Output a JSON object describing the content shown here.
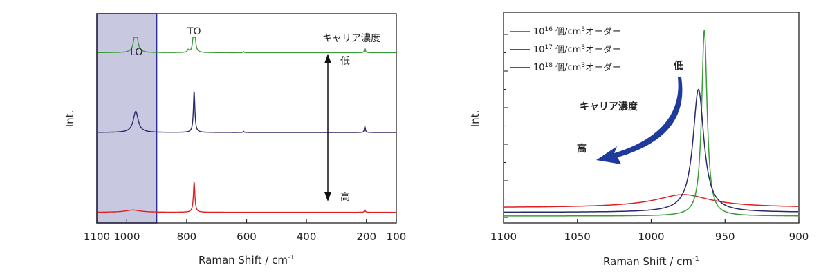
{
  "chart_data": [
    {
      "type": "line",
      "xlabel": "Raman Shift / cm",
      "xlabel_sup": "-1",
      "ylabel": "Int.",
      "xlim": [
        1100,
        100
      ],
      "x_ticks": [
        1100,
        1000,
        800,
        600,
        400,
        200,
        100
      ],
      "highlight_range": [
        1100,
        900
      ],
      "highlight_color": "#c8c8e0",
      "peak_labels": [
        {
          "text": "LO",
          "x": 970
        },
        {
          "text": "TO",
          "x": 775
        }
      ],
      "arrow_title": "キャリア濃度",
      "arrow_top_label": "低",
      "arrow_bottom_label": "高",
      "series": [
        {
          "color": "#3a9a3a",
          "baseline": 0.88,
          "peaks": [
            {
              "x": 970,
              "h": 0.8,
              "w": 6
            },
            {
              "x": 775,
              "h": 1.25,
              "w": 3
            },
            {
              "x": 795,
              "h": 0.07,
              "w": 3
            },
            {
              "x": 610,
              "h": 0.03,
              "w": 2
            },
            {
              "x": 205,
              "h": 0.13,
              "w": 2
            }
          ]
        },
        {
          "color": "#2a2a6a",
          "baseline": 0.45,
          "peaks": [
            {
              "x": 970,
              "h": 0.57,
              "w": 10
            },
            {
              "x": 775,
              "h": 1.12,
              "w": 3
            },
            {
              "x": 610,
              "h": 0.03,
              "w": 2
            },
            {
              "x": 205,
              "h": 0.17,
              "w": 2
            }
          ]
        },
        {
          "color": "#e02020",
          "baseline": 0.02,
          "peaks": [
            {
              "x": 980,
              "h": 0.06,
              "w": 30
            },
            {
              "x": 775,
              "h": 0.83,
              "w": 3
            },
            {
              "x": 205,
              "h": 0.07,
              "w": 2
            }
          ]
        }
      ]
    },
    {
      "type": "line",
      "xlabel": "Raman Shift / cm",
      "xlabel_sup": "-1",
      "ylabel": "Int.",
      "xlim": [
        1100,
        900
      ],
      "x_ticks": [
        1100,
        1050,
        1000,
        950,
        900
      ],
      "legend_position": "top-left",
      "annotation_low": "低",
      "annotation_title": "キャリア濃度",
      "annotation_high": "高",
      "series": [
        {
          "name_base": "10",
          "name_sup": "16",
          "name_suffix": " 個/cm",
          "name_sup2": "3",
          "name_tail": "オーダー",
          "color": "#3a9a3a",
          "baseline": 0.0,
          "peak_x": 964,
          "peak_h": 1.0,
          "width": 2.2
        },
        {
          "name_base": "10",
          "name_sup": "17",
          "name_suffix": " 個/cm",
          "name_sup2": "3",
          "name_tail": "オーダー",
          "color": "#1f5fa0",
          "baseline": 0.02,
          "peak_x": 968,
          "peak_h": 0.66,
          "width": 4.5
        },
        {
          "name_base": "10",
          "name_sup": "18",
          "name_suffix": " 個/cm",
          "name_sup2": "3",
          "name_tail": "オーダー",
          "color": "#e02020",
          "baseline": 0.05,
          "peak_x": 978,
          "peak_h": 0.05,
          "width": 20
        }
      ],
      "navy_series_color": "#2a2a6a"
    }
  ]
}
